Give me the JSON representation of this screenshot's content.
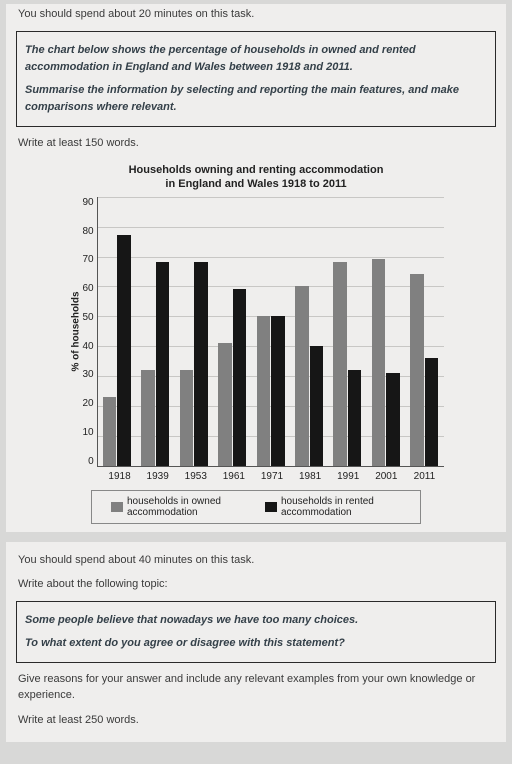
{
  "task1": {
    "time_instr": "You should spend about 20 minutes on this task.",
    "prompt_a": "The chart below shows the percentage of households in owned and rented accommodation in England and Wales between 1918 and 2011.",
    "prompt_b": "Summarise the information by selecting and reporting the main features, and make comparisons where relevant.",
    "min_words": "Write at least 150 words."
  },
  "chart": {
    "title_l1": "Households owning and renting accommodation",
    "title_l2": "in England and Wales 1918 to 2011",
    "ylabel": "% of households",
    "ylim": [
      0,
      90
    ],
    "ytick_step": 10,
    "categories": [
      "1918",
      "1939",
      "1953",
      "1961",
      "1971",
      "1981",
      "1991",
      "2001",
      "2011"
    ],
    "owned": [
      23,
      32,
      32,
      41,
      50,
      60,
      68,
      69,
      64
    ],
    "rented": [
      77,
      68,
      68,
      59,
      50,
      40,
      32,
      31,
      36
    ],
    "colors": {
      "owned": "#808080",
      "rented": "#161616",
      "grid": "#c8c7c5",
      "axis": "#555555"
    },
    "legend_owned": "households in owned accommodation",
    "legend_rented": "households in rented accommodation"
  },
  "task2": {
    "time_instr": "You should spend about 40 minutes on this task.",
    "topic_intro": "Write about the following topic:",
    "prompt_a": "Some people believe that nowadays we have too many choices.",
    "prompt_b": "To what extent do you agree or disagree with this statement?",
    "reasons": "Give reasons for your answer and include any relevant examples from your own knowledge or experience.",
    "min_words": "Write at least 250 words."
  }
}
